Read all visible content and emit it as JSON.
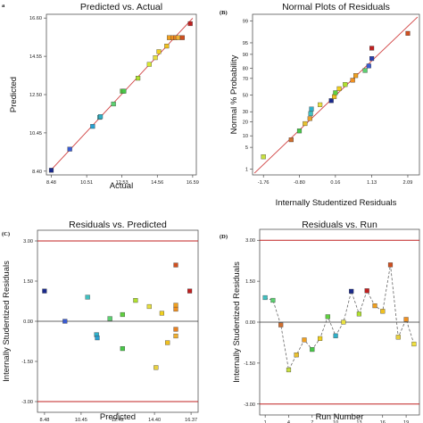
{
  "chart_data": [
    {
      "panel_letter": "a",
      "type": "scatter",
      "title": "Predicted vs. Actual",
      "xlabel": "Actual",
      "ylabel": "Predicted",
      "xlim": [
        8.2,
        16.8
      ],
      "ylim": [
        8.2,
        16.8
      ],
      "xticks": [
        "8.48",
        "10.51",
        "12.53",
        "14.56",
        "16.59"
      ],
      "yticks": [
        "8.40",
        "10.45",
        "12.50",
        "14.55",
        "16.60"
      ],
      "reference_line": {
        "from": [
          8.48,
          8.48
        ],
        "to": [
          16.59,
          16.59
        ],
        "color": "#d04040"
      },
      "points": [
        {
          "x": 8.48,
          "y": 8.45,
          "color": "#1a2a8c"
        },
        {
          "x": 9.54,
          "y": 9.58,
          "color": "#3a5bd0"
        },
        {
          "x": 10.85,
          "y": 10.8,
          "color": "#2aa0d0"
        },
        {
          "x": 11.25,
          "y": 11.28,
          "color": "#40c0c0"
        },
        {
          "x": 11.3,
          "y": 11.32,
          "color": "#30b0c8"
        },
        {
          "x": 12.05,
          "y": 12.0,
          "color": "#5cd070"
        },
        {
          "x": 12.55,
          "y": 12.68,
          "color": "#60d040"
        },
        {
          "x": 12.65,
          "y": 12.68,
          "color": "#48c848"
        },
        {
          "x": 13.45,
          "y": 13.38,
          "color": "#b0e030"
        },
        {
          "x": 14.1,
          "y": 14.12,
          "color": "#d8e830"
        },
        {
          "x": 14.45,
          "y": 14.48,
          "color": "#e8e040"
        },
        {
          "x": 14.65,
          "y": 14.8,
          "color": "#f0d020"
        },
        {
          "x": 15.1,
          "y": 15.1,
          "color": "#f0c020"
        },
        {
          "x": 15.25,
          "y": 15.55,
          "color": "#f0a020"
        },
        {
          "x": 15.45,
          "y": 15.55,
          "color": "#f09020"
        },
        {
          "x": 15.6,
          "y": 15.55,
          "color": "#e88020"
        },
        {
          "x": 15.75,
          "y": 15.55,
          "color": "#f0b030"
        },
        {
          "x": 16.0,
          "y": 15.55,
          "color": "#d05020"
        },
        {
          "x": 16.45,
          "y": 16.3,
          "color": "#c02020"
        }
      ]
    },
    {
      "panel_letter": "(B)",
      "type": "scatter",
      "title": "Normal Plots of Residuals",
      "xlabel": "Internally Studentized Residuals",
      "ylabel": "Normal % Probability",
      "xlim": [
        -2.05,
        2.4
      ],
      "xticks": [
        "-1.76",
        "-0.80",
        "0.16",
        "1.13",
        "2.09"
      ],
      "yticks": [
        "1",
        "5",
        "10",
        "20",
        "30",
        "50",
        "70",
        "80",
        "90",
        "95",
        "99"
      ],
      "ytick_values": [
        1,
        5,
        10,
        20,
        30,
        50,
        70,
        80,
        90,
        95,
        99
      ],
      "yscale": "normal-probability",
      "reference_line": {
        "from": [
          -2.0,
          0.7
        ],
        "to": [
          2.35,
          99.3
        ],
        "color": "#d04040"
      },
      "points": [
        {
          "x": -1.76,
          "y": 2.6,
          "color": "#c8e040"
        },
        {
          "x": -1.02,
          "y": 8.0,
          "color": "#d07030"
        },
        {
          "x": -0.8,
          "y": 13.0,
          "color": "#48c848"
        },
        {
          "x": -0.65,
          "y": 18.5,
          "color": "#e8c030"
        },
        {
          "x": -0.52,
          "y": 23.0,
          "color": "#e8a030"
        },
        {
          "x": -0.5,
          "y": 28.0,
          "color": "#40c0c0"
        },
        {
          "x": -0.48,
          "y": 33.0,
          "color": "#30b0c8"
        },
        {
          "x": -0.25,
          "y": 38.0,
          "color": "#e8e040"
        },
        {
          "x": 0.05,
          "y": 43.0,
          "color": "#1a2a8c"
        },
        {
          "x": 0.13,
          "y": 48.0,
          "color": "#f0c020"
        },
        {
          "x": 0.16,
          "y": 53.0,
          "color": "#60d040"
        },
        {
          "x": 0.26,
          "y": 58.0,
          "color": "#f0d020"
        },
        {
          "x": 0.42,
          "y": 63.0,
          "color": "#b0e030"
        },
        {
          "x": 0.62,
          "y": 68.0,
          "color": "#f09020"
        },
        {
          "x": 0.7,
          "y": 73.0,
          "color": "#f0a020"
        },
        {
          "x": 0.95,
          "y": 78.0,
          "color": "#5cd070"
        },
        {
          "x": 1.05,
          "y": 82.0,
          "color": "#3a5bd0"
        },
        {
          "x": 1.13,
          "y": 87.5,
          "color": "#2a40b0"
        },
        {
          "x": 1.13,
          "y": 93.0,
          "color": "#c02020"
        },
        {
          "x": 2.09,
          "y": 97.4,
          "color": "#d05020"
        }
      ]
    },
    {
      "panel_letter": "(C)",
      "type": "scatter",
      "title": "Residuals vs. Predicted",
      "xlabel": "Predicted",
      "ylabel": "Internally Studentized Residuals",
      "xlim": [
        8.1,
        16.75
      ],
      "ylim": [
        -3.4,
        3.4
      ],
      "xticks": [
        "8.48",
        "10.45",
        "12.42",
        "14.40",
        "16.37"
      ],
      "yticks": [
        "3.00",
        "1.50",
        "0.00",
        "-1.50",
        "-3.00"
      ],
      "control_limits": [
        3.0,
        -3.0
      ],
      "zero_line": 0,
      "points": [
        {
          "x": 8.48,
          "y": 1.13,
          "color": "#1a2a8c"
        },
        {
          "x": 9.58,
          "y": 0.0,
          "color": "#3a5bd0"
        },
        {
          "x": 10.8,
          "y": 0.9,
          "color": "#40c0c0"
        },
        {
          "x": 11.28,
          "y": -0.5,
          "color": "#30b0c8"
        },
        {
          "x": 11.32,
          "y": -0.62,
          "color": "#2aa0d0"
        },
        {
          "x": 12.0,
          "y": 0.1,
          "color": "#5cd070"
        },
        {
          "x": 12.68,
          "y": 0.25,
          "color": "#60d040"
        },
        {
          "x": 12.68,
          "y": -1.02,
          "color": "#48c848"
        },
        {
          "x": 13.38,
          "y": 0.78,
          "color": "#b0e030"
        },
        {
          "x": 14.12,
          "y": 0.55,
          "color": "#e8e040"
        },
        {
          "x": 14.48,
          "y": -1.73,
          "color": "#e8d040"
        },
        {
          "x": 14.8,
          "y": 0.3,
          "color": "#f0d020"
        },
        {
          "x": 15.1,
          "y": -0.8,
          "color": "#f0c020"
        },
        {
          "x": 15.55,
          "y": 0.6,
          "color": "#f0a020"
        },
        {
          "x": 15.55,
          "y": 0.45,
          "color": "#f09020"
        },
        {
          "x": 15.55,
          "y": -0.3,
          "color": "#e88020"
        },
        {
          "x": 15.55,
          "y": -0.55,
          "color": "#f0b030"
        },
        {
          "x": 15.55,
          "y": 2.1,
          "color": "#d05020"
        },
        {
          "x": 16.3,
          "y": 1.13,
          "color": "#c02020"
        }
      ]
    },
    {
      "panel_letter": "(D)",
      "type": "line",
      "title": "Residuals vs. Run",
      "xlabel": "Run Number",
      "ylabel": "Internally Studentized Residuals",
      "xlim": [
        0.3,
        20.7
      ],
      "ylim": [
        -3.4,
        3.4
      ],
      "xticks": [
        "1",
        "4",
        "7",
        "10",
        "13",
        "16",
        "19"
      ],
      "yticks": [
        "3.00",
        "1.50",
        "0.00",
        "-1.50",
        "-3.00"
      ],
      "control_limits": [
        3.0,
        -3.0
      ],
      "zero_line": 0,
      "points": [
        {
          "x": 1,
          "y": 0.9,
          "color": "#40c0c0"
        },
        {
          "x": 2,
          "y": 0.8,
          "color": "#5cd070"
        },
        {
          "x": 3,
          "y": -0.1,
          "color": "#d07030"
        },
        {
          "x": 4,
          "y": -1.75,
          "color": "#c8e040"
        },
        {
          "x": 5,
          "y": -1.2,
          "color": "#e8c030"
        },
        {
          "x": 6,
          "y": -0.65,
          "color": "#f0a020"
        },
        {
          "x": 7,
          "y": -1.0,
          "color": "#48c848"
        },
        {
          "x": 8,
          "y": -0.6,
          "color": "#f0d020"
        },
        {
          "x": 9,
          "y": 0.2,
          "color": "#60d040"
        },
        {
          "x": 10,
          "y": -0.5,
          "color": "#30b0c8"
        },
        {
          "x": 11,
          "y": 0.0,
          "color": "#e8e040"
        },
        {
          "x": 12,
          "y": 1.13,
          "color": "#1a2a8c"
        },
        {
          "x": 13,
          "y": 0.3,
          "color": "#b0e030"
        },
        {
          "x": 14,
          "y": 1.15,
          "color": "#c02020"
        },
        {
          "x": 15,
          "y": 0.6,
          "color": "#f0a020"
        },
        {
          "x": 16,
          "y": 0.4,
          "color": "#f0c020"
        },
        {
          "x": 17,
          "y": 2.1,
          "color": "#d05020"
        },
        {
          "x": 18,
          "y": -0.55,
          "color": "#e8d040"
        },
        {
          "x": 19,
          "y": 0.1,
          "color": "#f09020"
        },
        {
          "x": 20,
          "y": -0.8,
          "color": "#f0e040"
        }
      ]
    }
  ]
}
